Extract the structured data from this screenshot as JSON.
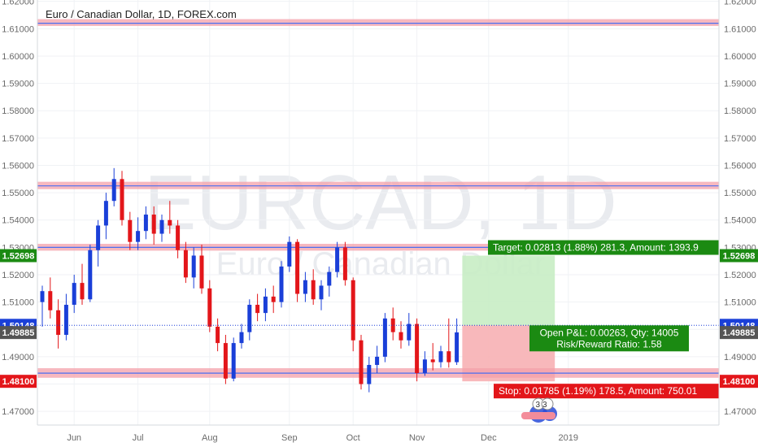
{
  "chart_data": {
    "type": "candlestick",
    "title": "Euro / Canadian Dollar, 1D, FOREX.com",
    "watermark": {
      "symbol": "EURCAD, 1D",
      "name": "Euro / Canadian Dollar"
    },
    "ylim": [
      1.465,
      1.6205
    ],
    "y_ticks": [
      "1.62000",
      "1.61000",
      "1.60000",
      "1.59000",
      "1.58000",
      "1.57000",
      "1.56000",
      "1.55000",
      "1.54000",
      "1.53000",
      "1.52000",
      "1.51000",
      "1.50000",
      "1.49000",
      "1.48000",
      "1.47000"
    ],
    "x_ticks": [
      {
        "label": "Jun",
        "index": 4
      },
      {
        "label": "Jul",
        "index": 12
      },
      {
        "label": "Aug",
        "index": 21
      },
      {
        "label": "Sep",
        "index": 31
      },
      {
        "label": "Oct",
        "index": 39
      },
      {
        "label": "Nov",
        "index": 47
      },
      {
        "label": "Dec",
        "index": 56
      },
      {
        "label": "2019",
        "index": 66
      }
    ],
    "candles": [
      {
        "o": 1.51,
        "h": 1.516,
        "l": 1.501,
        "c": 1.514
      },
      {
        "o": 1.514,
        "h": 1.519,
        "l": 1.504,
        "c": 1.507
      },
      {
        "o": 1.507,
        "h": 1.511,
        "l": 1.493,
        "c": 1.498
      },
      {
        "o": 1.498,
        "h": 1.513,
        "l": 1.496,
        "c": 1.509
      },
      {
        "o": 1.509,
        "h": 1.52,
        "l": 1.506,
        "c": 1.517
      },
      {
        "o": 1.517,
        "h": 1.524,
        "l": 1.509,
        "c": 1.511
      },
      {
        "o": 1.511,
        "h": 1.531,
        "l": 1.51,
        "c": 1.529
      },
      {
        "o": 1.529,
        "h": 1.54,
        "l": 1.523,
        "c": 1.538
      },
      {
        "o": 1.538,
        "h": 1.55,
        "l": 1.533,
        "c": 1.547
      },
      {
        "o": 1.547,
        "h": 1.559,
        "l": 1.545,
        "c": 1.555
      },
      {
        "o": 1.555,
        "h": 1.558,
        "l": 1.538,
        "c": 1.54
      },
      {
        "o": 1.54,
        "h": 1.543,
        "l": 1.529,
        "c": 1.532
      },
      {
        "o": 1.532,
        "h": 1.541,
        "l": 1.529,
        "c": 1.536
      },
      {
        "o": 1.536,
        "h": 1.545,
        "l": 1.533,
        "c": 1.542
      },
      {
        "o": 1.542,
        "h": 1.545,
        "l": 1.531,
        "c": 1.535
      },
      {
        "o": 1.535,
        "h": 1.542,
        "l": 1.532,
        "c": 1.54
      },
      {
        "o": 1.54,
        "h": 1.547,
        "l": 1.535,
        "c": 1.538
      },
      {
        "o": 1.538,
        "h": 1.54,
        "l": 1.526,
        "c": 1.529
      },
      {
        "o": 1.529,
        "h": 1.532,
        "l": 1.517,
        "c": 1.519
      },
      {
        "o": 1.519,
        "h": 1.53,
        "l": 1.515,
        "c": 1.527
      },
      {
        "o": 1.527,
        "h": 1.531,
        "l": 1.513,
        "c": 1.515
      },
      {
        "o": 1.515,
        "h": 1.518,
        "l": 1.499,
        "c": 1.501
      },
      {
        "o": 1.501,
        "h": 1.504,
        "l": 1.492,
        "c": 1.495
      },
      {
        "o": 1.495,
        "h": 1.498,
        "l": 1.48,
        "c": 1.482
      },
      {
        "o": 1.482,
        "h": 1.497,
        "l": 1.481,
        "c": 1.495
      },
      {
        "o": 1.495,
        "h": 1.502,
        "l": 1.493,
        "c": 1.499
      },
      {
        "o": 1.499,
        "h": 1.511,
        "l": 1.496,
        "c": 1.509
      },
      {
        "o": 1.509,
        "h": 1.513,
        "l": 1.503,
        "c": 1.506
      },
      {
        "o": 1.506,
        "h": 1.515,
        "l": 1.503,
        "c": 1.512
      },
      {
        "o": 1.512,
        "h": 1.516,
        "l": 1.506,
        "c": 1.51
      },
      {
        "o": 1.51,
        "h": 1.525,
        "l": 1.508,
        "c": 1.523
      },
      {
        "o": 1.523,
        "h": 1.534,
        "l": 1.521,
        "c": 1.532
      },
      {
        "o": 1.532,
        "h": 1.533,
        "l": 1.51,
        "c": 1.513
      },
      {
        "o": 1.513,
        "h": 1.521,
        "l": 1.51,
        "c": 1.518
      },
      {
        "o": 1.518,
        "h": 1.522,
        "l": 1.509,
        "c": 1.511
      },
      {
        "o": 1.511,
        "h": 1.518,
        "l": 1.507,
        "c": 1.516
      },
      {
        "o": 1.516,
        "h": 1.523,
        "l": 1.512,
        "c": 1.521
      },
      {
        "o": 1.521,
        "h": 1.532,
        "l": 1.519,
        "c": 1.53
      },
      {
        "o": 1.53,
        "h": 1.532,
        "l": 1.516,
        "c": 1.518
      },
      {
        "o": 1.518,
        "h": 1.519,
        "l": 1.492,
        "c": 1.496
      },
      {
        "o": 1.496,
        "h": 1.498,
        "l": 1.478,
        "c": 1.48
      },
      {
        "o": 1.48,
        "h": 1.49,
        "l": 1.477,
        "c": 1.487
      },
      {
        "o": 1.487,
        "h": 1.494,
        "l": 1.484,
        "c": 1.49
      },
      {
        "o": 1.49,
        "h": 1.506,
        "l": 1.488,
        "c": 1.504
      },
      {
        "o": 1.504,
        "h": 1.508,
        "l": 1.496,
        "c": 1.499
      },
      {
        "o": 1.499,
        "h": 1.503,
        "l": 1.493,
        "c": 1.496
      },
      {
        "o": 1.496,
        "h": 1.506,
        "l": 1.494,
        "c": 1.502
      },
      {
        "o": 1.502,
        "h": 1.504,
        "l": 1.481,
        "c": 1.484
      },
      {
        "o": 1.484,
        "h": 1.492,
        "l": 1.483,
        "c": 1.489
      },
      {
        "o": 1.489,
        "h": 1.495,
        "l": 1.485,
        "c": 1.488
      },
      {
        "o": 1.488,
        "h": 1.494,
        "l": 1.486,
        "c": 1.492
      },
      {
        "o": 1.492,
        "h": 1.504,
        "l": 1.486,
        "c": 1.488
      },
      {
        "o": 1.488,
        "h": 1.504,
        "l": 1.487,
        "c": 1.4989
      }
    ],
    "horizontal_levels": [
      {
        "value": 1.612,
        "band": [
          1.611,
          1.6135
        ]
      },
      {
        "value": 1.5525,
        "band": [
          1.5513,
          1.554
        ]
      },
      {
        "value": 1.53,
        "band": [
          1.5288,
          1.5313
        ]
      },
      {
        "value": 1.484,
        "band": [
          1.4823,
          1.4858
        ]
      }
    ],
    "position": {
      "entry": 1.50148,
      "target": 1.52698,
      "stop": 1.481,
      "current": 1.49885,
      "start_index": 53,
      "end_index": 64,
      "target_label": "Target: 0.02813 (1.88%) 281.3, Amount: 1393.9",
      "stop_label": "Stop: 0.01785 (1.19%) 178.5, Amount: 750.01",
      "pnl_label": "Open P&L: 0.00263, Qty: 14005",
      "rr_label": "Risk/Reward Ratio: 1.58"
    },
    "price_tags": [
      {
        "label": "1.52698",
        "value": 1.52698,
        "color": "#1b8a12"
      },
      {
        "label": "1.50148",
        "value": 1.50148,
        "color": "#1a3fd8"
      },
      {
        "label": "1.49885",
        "value": 1.49885,
        "color": "#555555"
      },
      {
        "label": "1.48100",
        "value": 1.481,
        "color": "#e3161a"
      }
    ],
    "logo_digits": "33",
    "colors": {
      "up": "#1a3fd8",
      "down": "#e3161a",
      "band": "#f4a0aa",
      "level_line": "#4a6ff0",
      "profit_zone": "#c8edc4",
      "loss_zone": "#f7b0b4",
      "target_box": "#1b8a12",
      "stop_box": "#e3161a"
    }
  }
}
